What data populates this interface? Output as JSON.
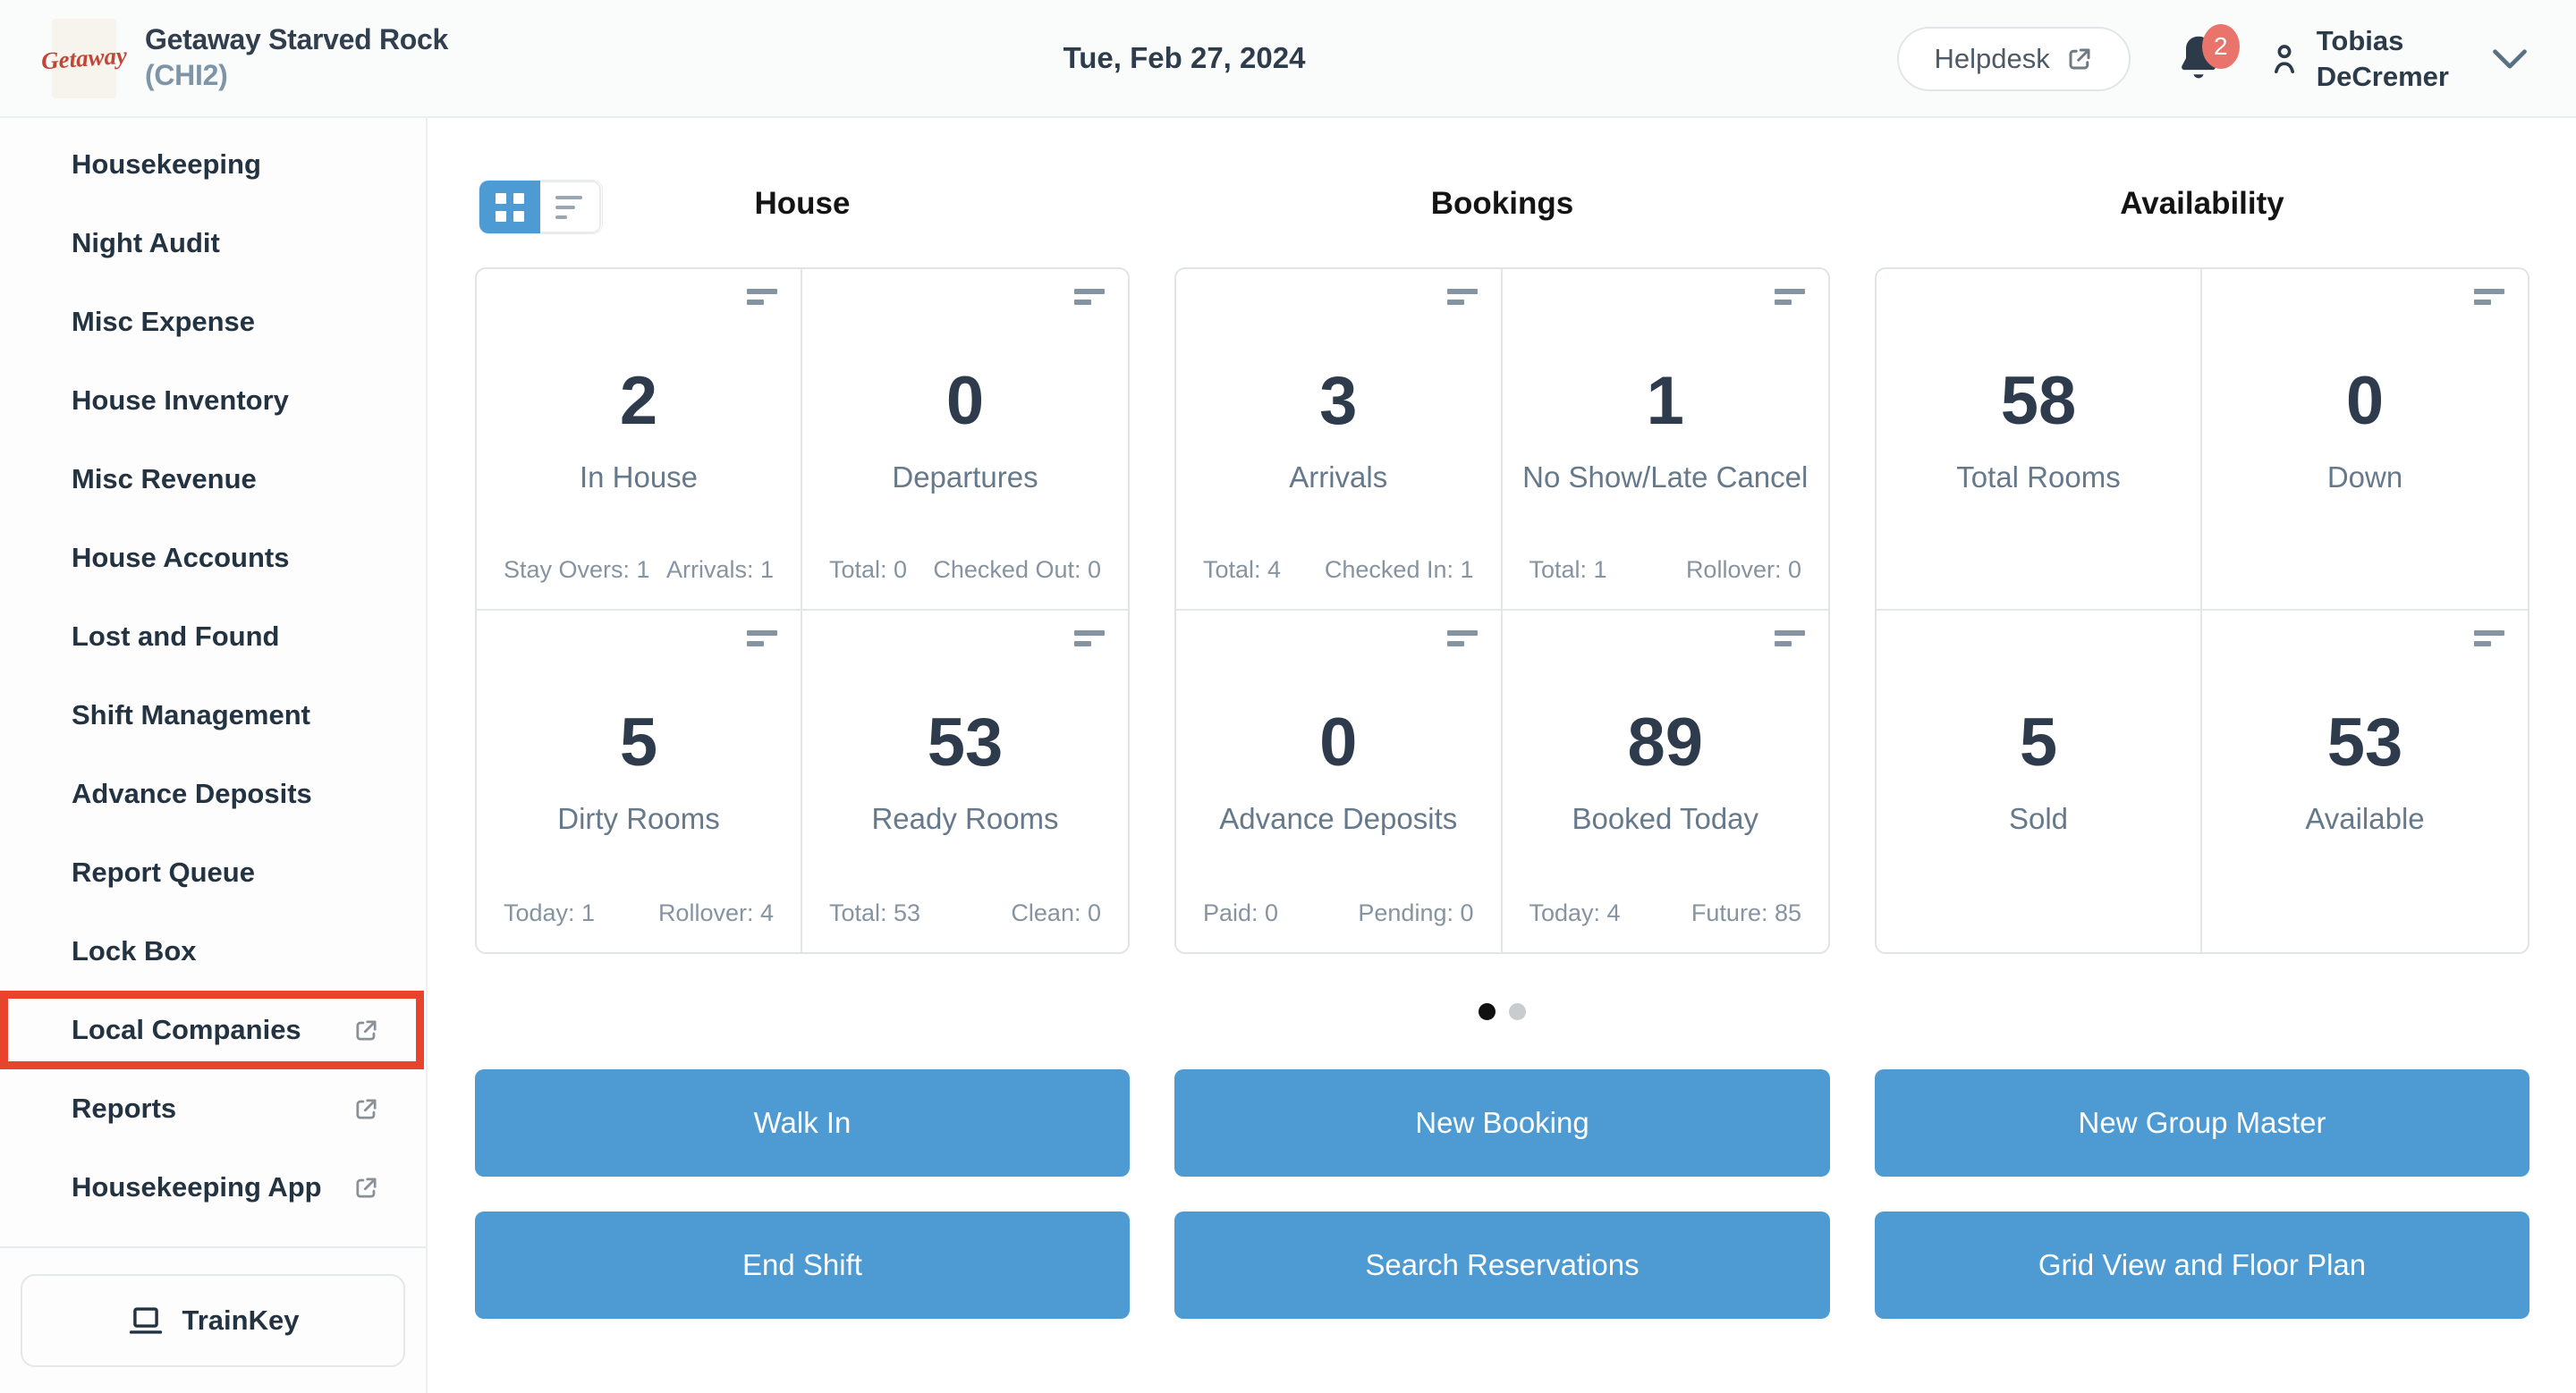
{
  "colors": {
    "accent_blue": "#4d9bd2",
    "annotation_red": "#e8432c",
    "badge_red": "#e9746c",
    "logo_red": "#c44536",
    "dark_text": "#2d3b4d",
    "muted_text": "#8694a2"
  },
  "header": {
    "logo_text": "Getaway",
    "property_name": "Getaway Starved Rock",
    "property_code": "(CHI2)",
    "date": "Tue, Feb 27, 2024",
    "helpdesk_label": "Helpdesk",
    "notification_count": "2",
    "user_name_line1": "Tobias",
    "user_name_line2": "DeCremer"
  },
  "sidebar": {
    "items": [
      {
        "label": "Housekeeping",
        "external": false,
        "highlighted": false
      },
      {
        "label": "Night Audit",
        "external": false,
        "highlighted": false
      },
      {
        "label": "Misc Expense",
        "external": false,
        "highlighted": false
      },
      {
        "label": "House Inventory",
        "external": false,
        "highlighted": false
      },
      {
        "label": "Misc Revenue",
        "external": false,
        "highlighted": false
      },
      {
        "label": "House Accounts",
        "external": false,
        "highlighted": false
      },
      {
        "label": "Lost and Found",
        "external": false,
        "highlighted": false
      },
      {
        "label": "Shift Management",
        "external": false,
        "highlighted": false
      },
      {
        "label": "Advance Deposits",
        "external": false,
        "highlighted": false
      },
      {
        "label": "Report Queue",
        "external": false,
        "highlighted": false
      },
      {
        "label": "Lock Box",
        "external": false,
        "highlighted": false
      },
      {
        "label": "Local Companies",
        "external": true,
        "highlighted": true
      },
      {
        "label": "Reports",
        "external": true,
        "highlighted": false
      },
      {
        "label": "Housekeeping App",
        "external": true,
        "highlighted": false
      }
    ],
    "trainkey_label": "TrainKey"
  },
  "dashboard": {
    "view_toggle": {
      "active": "grid"
    },
    "groups": [
      {
        "title": "House",
        "cards": [
          {
            "value": "2",
            "label": "In House",
            "stat_left": "Stay Overs: 1",
            "stat_right": "Arrivals: 1",
            "menu_icon": true
          },
          {
            "value": "0",
            "label": "Departures",
            "stat_left": "Total: 0",
            "stat_right": "Checked Out: 0",
            "menu_icon": true
          },
          {
            "value": "5",
            "label": "Dirty Rooms",
            "stat_left": "Today: 1",
            "stat_right": "Rollover: 4",
            "menu_icon": true
          },
          {
            "value": "53",
            "label": "Ready Rooms",
            "stat_left": "Total: 53",
            "stat_right": "Clean: 0",
            "menu_icon": true
          }
        ]
      },
      {
        "title": "Bookings",
        "cards": [
          {
            "value": "3",
            "label": "Arrivals",
            "stat_left": "Total: 4",
            "stat_right": "Checked In: 1",
            "menu_icon": true
          },
          {
            "value": "1",
            "label": "No Show/Late Cancel",
            "stat_left": "Total: 1",
            "stat_right": "Rollover: 0",
            "menu_icon": true
          },
          {
            "value": "0",
            "label": "Advance Deposits",
            "stat_left": "Paid: 0",
            "stat_right": "Pending: 0",
            "menu_icon": true
          },
          {
            "value": "89",
            "label": "Booked Today",
            "stat_left": "Today: 4",
            "stat_right": "Future: 85",
            "menu_icon": true
          }
        ]
      },
      {
        "title": "Availability",
        "cards": [
          {
            "value": "58",
            "label": "Total Rooms",
            "stat_left": "",
            "stat_right": "",
            "menu_icon": false
          },
          {
            "value": "0",
            "label": "Down",
            "stat_left": "",
            "stat_right": "",
            "menu_icon": true
          },
          {
            "value": "5",
            "label": "Sold",
            "stat_left": "",
            "stat_right": "",
            "menu_icon": false
          },
          {
            "value": "53",
            "label": "Available",
            "stat_left": "",
            "stat_right": "",
            "menu_icon": true
          }
        ]
      }
    ],
    "pagination": {
      "dots": 2,
      "active_index": 0
    },
    "action_rows": [
      [
        "Walk In",
        "New Booking",
        "New Group Master"
      ],
      [
        "End Shift",
        "Search Reservations",
        "Grid View and Floor Plan"
      ]
    ]
  }
}
